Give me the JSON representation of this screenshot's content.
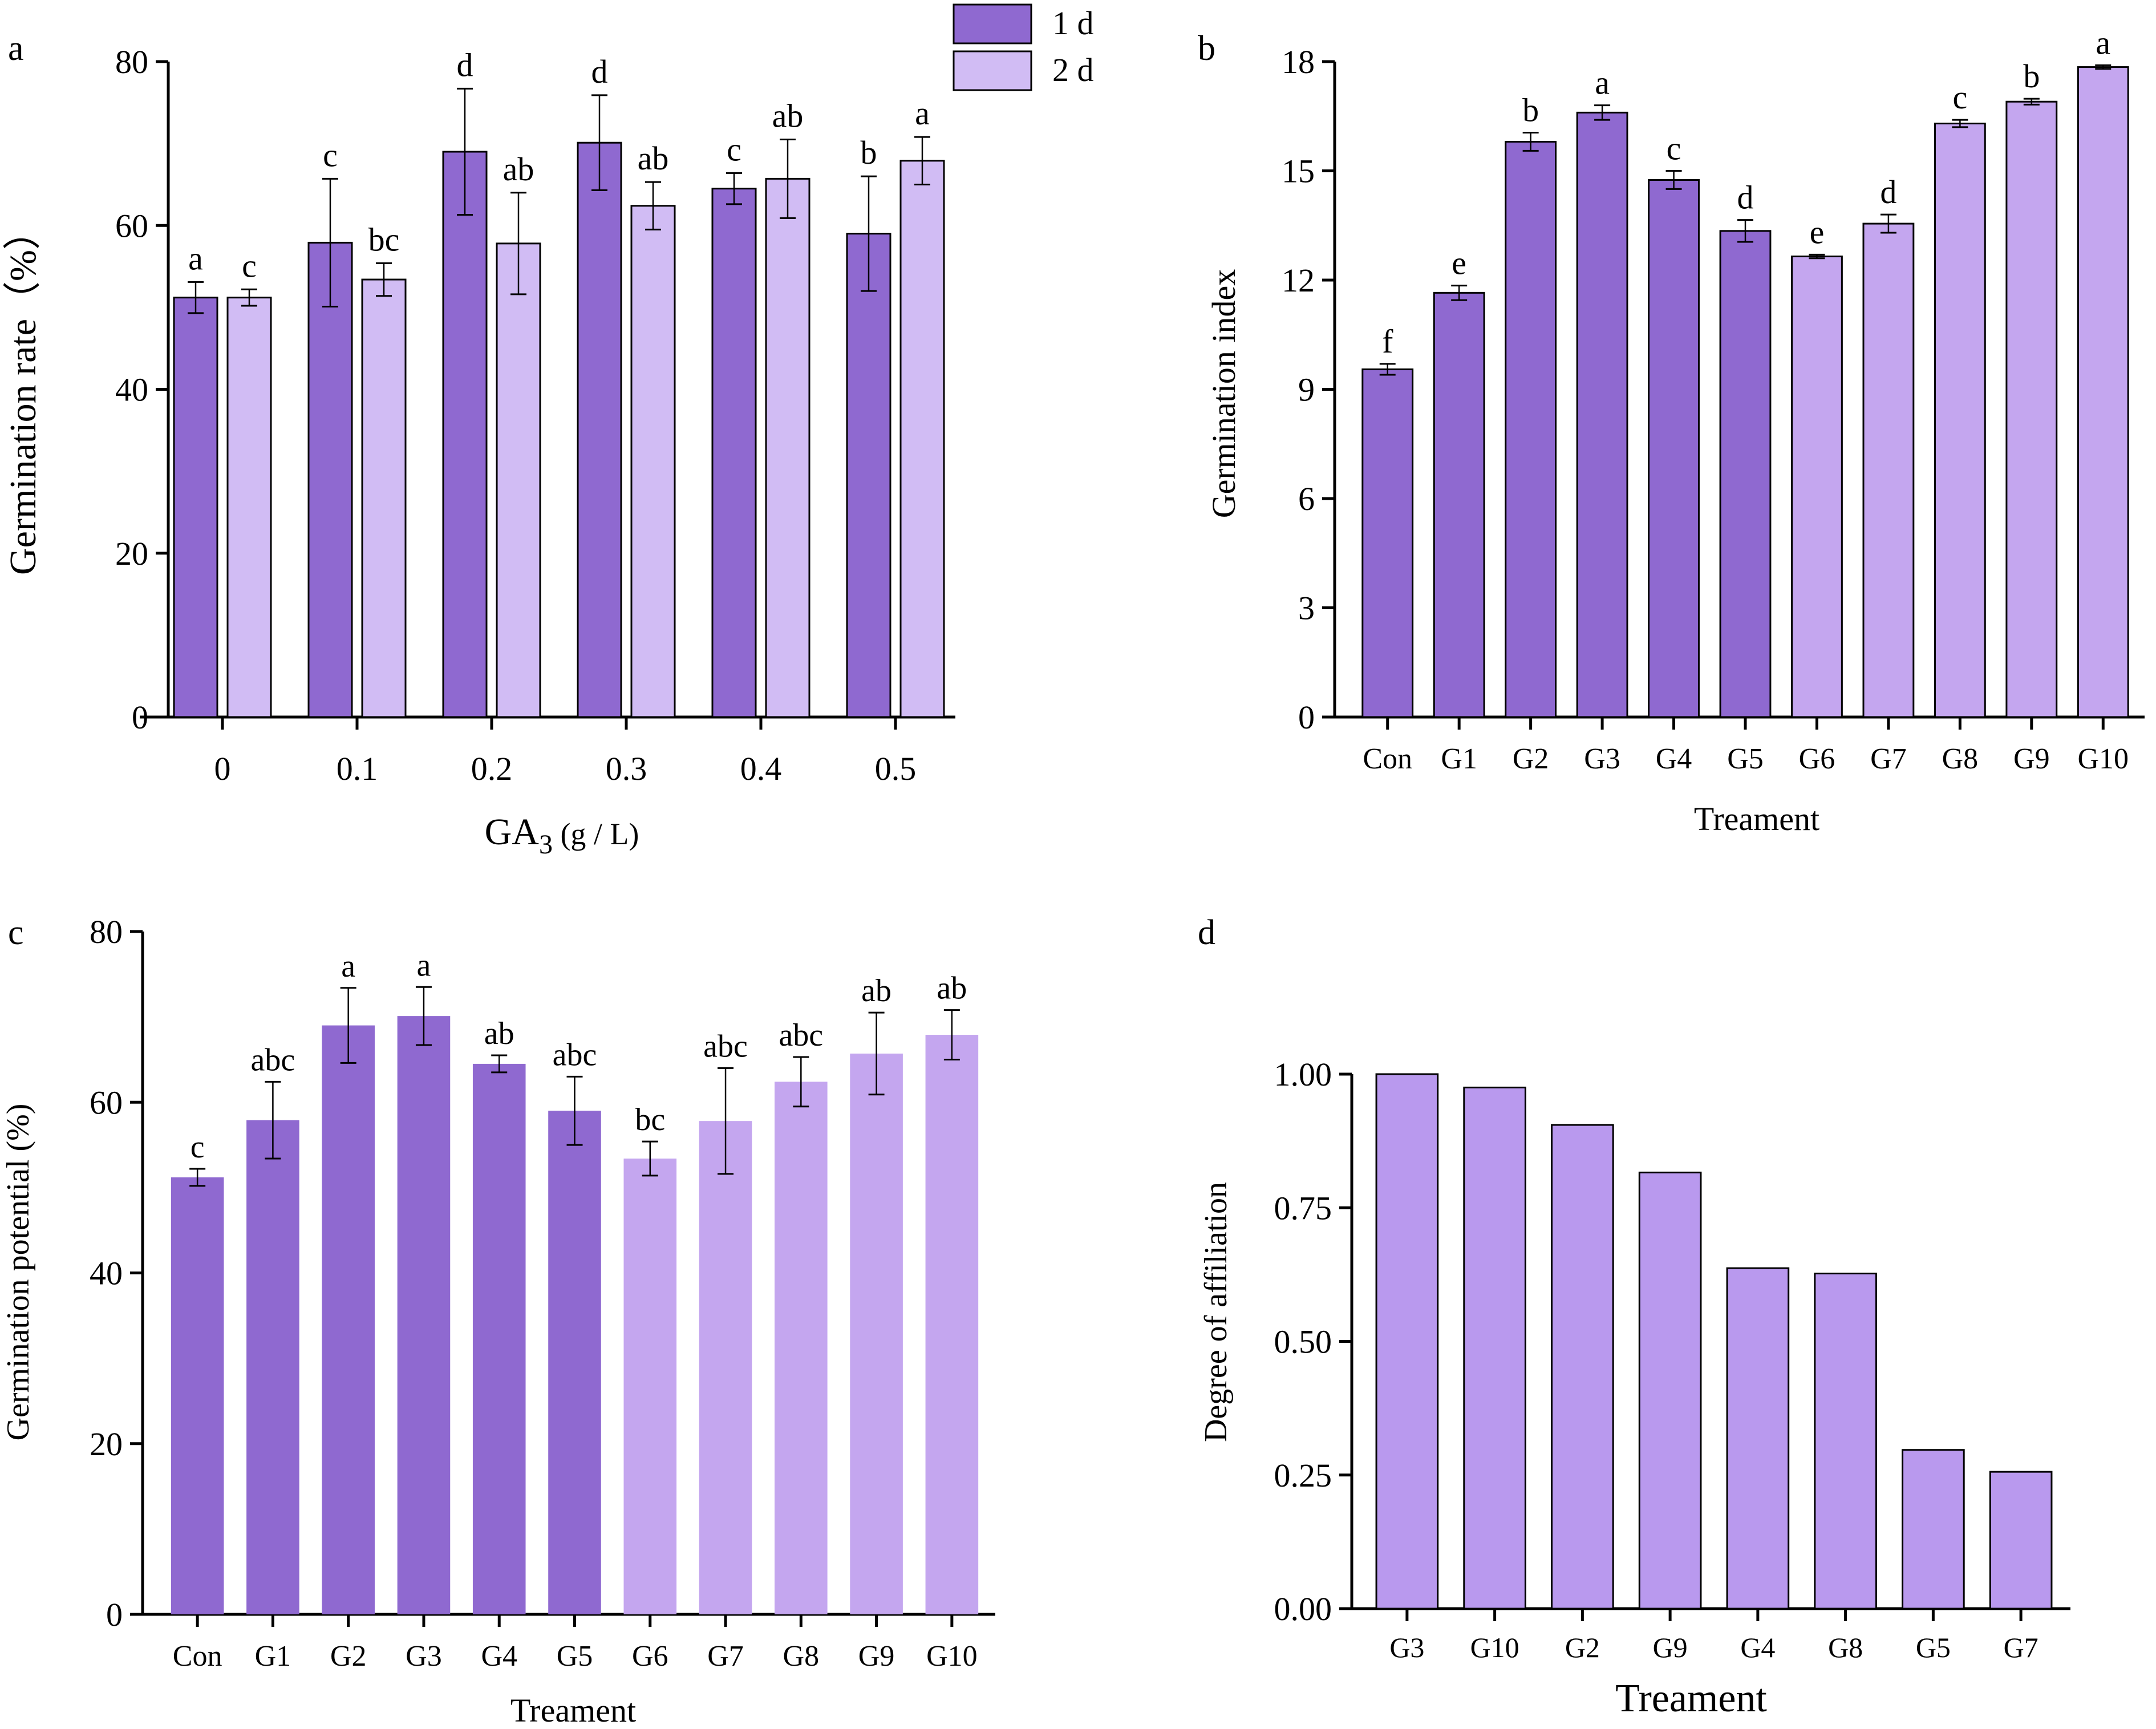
{
  "colors": {
    "day1": "#8f69d0",
    "day2": "#d1bcf4",
    "light_treatment": "#c4a6ef",
    "affiliation": "#b999ee"
  },
  "chart_data": [
    {
      "panel": "a",
      "type": "bar",
      "title": "",
      "xlabel": "GA3 (g / L)",
      "xlabel_main": "GA",
      "xlabel_sub": "3",
      "xlabel_rest": " (g / L)",
      "ylabel": "Germination rate（%）",
      "ylim": [
        0,
        80
      ],
      "yticks": [
        0,
        20,
        40,
        60,
        80
      ],
      "categories": [
        "0",
        "0.1",
        "0.2",
        "0.3",
        "0.4",
        "0.5"
      ],
      "legend": {
        "placement": "top-right",
        "entries": [
          "1 d",
          "2 d"
        ]
      },
      "series": [
        {
          "name": "1 d",
          "values": [
            51.2,
            57.9,
            69.0,
            70.1,
            64.5,
            59.0
          ],
          "errors": [
            1.9,
            7.8,
            7.7,
            5.8,
            1.9,
            7.0
          ],
          "letters": [
            "a",
            "c",
            "d",
            "d",
            "c",
            "b"
          ]
        },
        {
          "name": "2 d",
          "values": [
            51.2,
            53.4,
            57.8,
            62.4,
            65.7,
            67.9
          ],
          "errors": [
            1.0,
            2.0,
            6.2,
            2.9,
            4.8,
            2.9
          ],
          "letters": [
            "c",
            "bc",
            "ab",
            "ab",
            "ab",
            "a"
          ]
        }
      ]
    },
    {
      "panel": "b",
      "type": "bar",
      "title": "",
      "xlabel": "Treament",
      "ylabel": "Germination index",
      "ylim": [
        0,
        18
      ],
      "yticks": [
        0,
        3,
        6,
        9,
        12,
        15,
        18
      ],
      "categories": [
        "Con",
        "G1",
        "G2",
        "G3",
        "G4",
        "G5",
        "G6",
        "G7",
        "G8",
        "G9",
        "G10"
      ],
      "values": [
        9.55,
        11.65,
        15.8,
        16.6,
        14.75,
        13.35,
        12.65,
        13.55,
        16.3,
        16.9,
        17.85
      ],
      "errors": [
        0.15,
        0.2,
        0.25,
        0.2,
        0.25,
        0.3,
        0.05,
        0.25,
        0.1,
        0.08,
        0.05
      ],
      "letters": [
        "f",
        "e",
        "b",
        "a",
        "c",
        "d",
        "e",
        "d",
        "c",
        "b",
        "a"
      ],
      "light_from_index": 6
    },
    {
      "panel": "c",
      "type": "bar",
      "title": "",
      "xlabel": "Treament",
      "ylabel": "Germination potential (%)",
      "ylim": [
        0,
        80
      ],
      "yticks": [
        0,
        20,
        40,
        60,
        80
      ],
      "categories": [
        "Con",
        "G1",
        "G2",
        "G3",
        "G4",
        "G5",
        "G6",
        "G7",
        "G8",
        "G9",
        "G10"
      ],
      "values": [
        51.2,
        57.9,
        69.0,
        70.1,
        64.5,
        59.0,
        53.4,
        57.8,
        62.4,
        65.7,
        67.9
      ],
      "errors": [
        1.0,
        4.5,
        4.4,
        3.4,
        1.0,
        4.0,
        2.0,
        6.2,
        2.9,
        4.8,
        2.9
      ],
      "letters": [
        "c",
        "abc",
        "a",
        "a",
        "ab",
        "abc",
        "bc",
        "abc",
        "abc",
        "ab",
        "ab"
      ],
      "light_from_index": 6
    },
    {
      "panel": "d",
      "type": "bar",
      "title": "",
      "xlabel": "Treament",
      "ylabel": "Degree of affiliation",
      "ylim": [
        0,
        1.0
      ],
      "yticks": [
        "0.00",
        "0.25",
        "0.50",
        "0.75",
        "1.00"
      ],
      "categories": [
        "G3",
        "G10",
        "G2",
        "G9",
        "G4",
        "G8",
        "G5",
        "G7"
      ],
      "values": [
        1.0,
        0.975,
        0.905,
        0.816,
        0.637,
        0.627,
        0.297,
        0.256
      ]
    }
  ]
}
